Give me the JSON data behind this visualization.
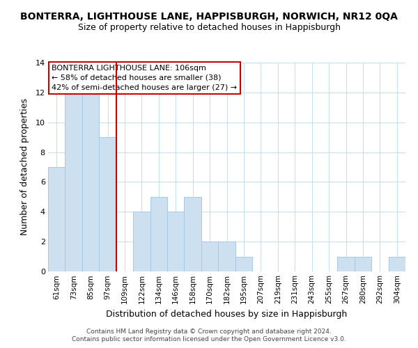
{
  "title": "BONTERRA, LIGHTHOUSE LANE, HAPPISBURGH, NORWICH, NR12 0QA",
  "subtitle": "Size of property relative to detached houses in Happisburgh",
  "xlabel": "Distribution of detached houses by size in Happisburgh",
  "ylabel": "Number of detached properties",
  "bar_color": "#cce0f0",
  "bar_edge_color": "#a8c8e8",
  "categories": [
    "61sqm",
    "73sqm",
    "85sqm",
    "97sqm",
    "109sqm",
    "122sqm",
    "134sqm",
    "146sqm",
    "158sqm",
    "170sqm",
    "182sqm",
    "195sqm",
    "207sqm",
    "219sqm",
    "231sqm",
    "243sqm",
    "255sqm",
    "267sqm",
    "280sqm",
    "292sqm",
    "304sqm"
  ],
  "values": [
    7,
    12,
    12,
    9,
    0,
    4,
    5,
    4,
    5,
    2,
    2,
    1,
    0,
    0,
    0,
    0,
    0,
    1,
    1,
    0,
    1
  ],
  "ylim": [
    0,
    14
  ],
  "yticks": [
    0,
    2,
    4,
    6,
    8,
    10,
    12,
    14
  ],
  "vline_x": 4.5,
  "vline_color": "#cc0000",
  "annotation_title": "BONTERRA LIGHTHOUSE LANE: 106sqm",
  "annotation_line1": "← 58% of detached houses are smaller (38)",
  "annotation_line2": "42% of semi-detached houses are larger (27) →",
  "annotation_box_color": "#ffffff",
  "annotation_box_edge": "#cc0000",
  "footer1": "Contains HM Land Registry data © Crown copyright and database right 2024.",
  "footer2": "Contains public sector information licensed under the Open Government Licence v3.0.",
  "background_color": "#ffffff",
  "grid_color": "#c8dff0"
}
